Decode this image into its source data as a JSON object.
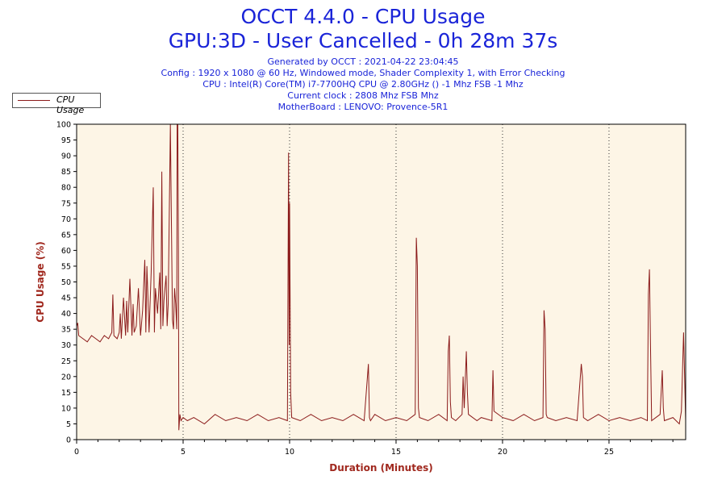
{
  "header": {
    "title": "OCCT 4.4.0 - CPU Usage",
    "subtitle": "GPU:3D - User Cancelled - 0h 28m 37s",
    "info_lines": [
      "Generated by OCCT : 2021-04-22 23:04:45",
      "Config : 1920 x 1080 @ 60 Hz, Windowed mode, Shader Complexity 1, with Error Checking",
      "CPU : Intel(R) Core(TM) i7-7700HQ CPU @ 2.80GHz () -1 Mhz FSB -1 Mhz",
      "Current clock : 2808 Mhz FSB  Mhz",
      "MotherBoard : LENOVO: Provence-5R1"
    ]
  },
  "legend": {
    "label": "CPU Usage"
  },
  "colors": {
    "line": "#8b1a1a",
    "title": "#1a24d8",
    "axis_label": "#a0281e",
    "plot_bg": "#fdf5e6"
  },
  "chart_data": {
    "type": "line",
    "title": "OCCT 4.4.0 - CPU Usage",
    "xlabel": "Duration (Minutes)",
    "ylabel": "CPU Usage (%)",
    "xlim": [
      0,
      28.6
    ],
    "ylim": [
      0,
      100
    ],
    "x_ticks": [
      0,
      5,
      10,
      15,
      20,
      25
    ],
    "y_ticks": [
      0,
      5,
      10,
      15,
      20,
      25,
      30,
      35,
      40,
      45,
      50,
      55,
      60,
      65,
      70,
      75,
      80,
      85,
      90,
      95,
      100
    ],
    "grid": "vertical dotted",
    "legend_position": "top-left",
    "series": [
      {
        "name": "CPU Usage",
        "x": [
          0,
          0.05,
          0.1,
          0.3,
          0.5,
          0.7,
          0.9,
          1.1,
          1.3,
          1.5,
          1.65,
          1.7,
          1.75,
          1.9,
          2.0,
          2.05,
          2.1,
          2.2,
          2.3,
          2.35,
          2.4,
          2.5,
          2.6,
          2.65,
          2.7,
          2.8,
          2.9,
          3.0,
          3.1,
          3.2,
          3.25,
          3.3,
          3.35,
          3.4,
          3.5,
          3.6,
          3.65,
          3.7,
          3.8,
          3.9,
          3.95,
          4.0,
          4.05,
          4.1,
          4.2,
          4.25,
          4.3,
          4.4,
          4.5,
          4.55,
          4.6,
          4.65,
          4.7,
          4.72,
          4.75,
          4.78,
          4.8,
          4.85,
          4.9,
          5.0,
          5.2,
          5.5,
          6.0,
          6.5,
          7.0,
          7.5,
          8.0,
          8.5,
          9.0,
          9.5,
          9.9,
          9.95,
          9.98,
          10.0,
          10.05,
          10.1,
          10.5,
          11.0,
          11.5,
          12.0,
          12.5,
          13.0,
          13.5,
          13.7,
          13.75,
          13.8,
          14.0,
          14.5,
          15.0,
          15.5,
          15.9,
          15.95,
          16.0,
          16.05,
          16.1,
          16.5,
          17.0,
          17.4,
          17.45,
          17.5,
          17.55,
          17.6,
          17.8,
          18.1,
          18.15,
          18.2,
          18.3,
          18.35,
          18.4,
          18.8,
          19.0,
          19.5,
          19.55,
          19.6,
          20.0,
          20.5,
          21.0,
          21.5,
          21.9,
          21.95,
          22.0,
          22.05,
          22.1,
          22.5,
          23.0,
          23.5,
          23.7,
          23.75,
          23.8,
          24.0,
          24.5,
          25.0,
          25.5,
          26.0,
          26.5,
          26.8,
          26.85,
          26.9,
          26.95,
          27.0,
          27.4,
          27.5,
          27.55,
          27.6,
          28.0,
          28.3,
          28.4,
          28.5,
          28.6
        ],
        "y": [
          36,
          37,
          33,
          32,
          31,
          33,
          32,
          31,
          33,
          32,
          34,
          46,
          33,
          32,
          34,
          40,
          32,
          45,
          33,
          44,
          34,
          51,
          33,
          43,
          34,
          36,
          48,
          33,
          41,
          57,
          34,
          55,
          45,
          34,
          53,
          80,
          34,
          48,
          40,
          53,
          35,
          85,
          36,
          44,
          52,
          36,
          43,
          100,
          38,
          35,
          48,
          43,
          35,
          100,
          100,
          60,
          3,
          8,
          6,
          7,
          6,
          7,
          5,
          8,
          6,
          7,
          6,
          8,
          6,
          7,
          6,
          91,
          30,
          75,
          15,
          7,
          6,
          8,
          6,
          7,
          6,
          8,
          6,
          24,
          7,
          6,
          8,
          6,
          7,
          6,
          8,
          64,
          55,
          10,
          7,
          6,
          8,
          6,
          28,
          33,
          12,
          7,
          6,
          8,
          20,
          10,
          28,
          15,
          8,
          6,
          7,
          6,
          22,
          9,
          7,
          6,
          8,
          6,
          7,
          41,
          35,
          8,
          7,
          6,
          7,
          6,
          24,
          20,
          7,
          6,
          8,
          6,
          7,
          6,
          7,
          6,
          46,
          54,
          30,
          6,
          8,
          22,
          10,
          6,
          7,
          5,
          9,
          34,
          6
        ]
      }
    ]
  }
}
